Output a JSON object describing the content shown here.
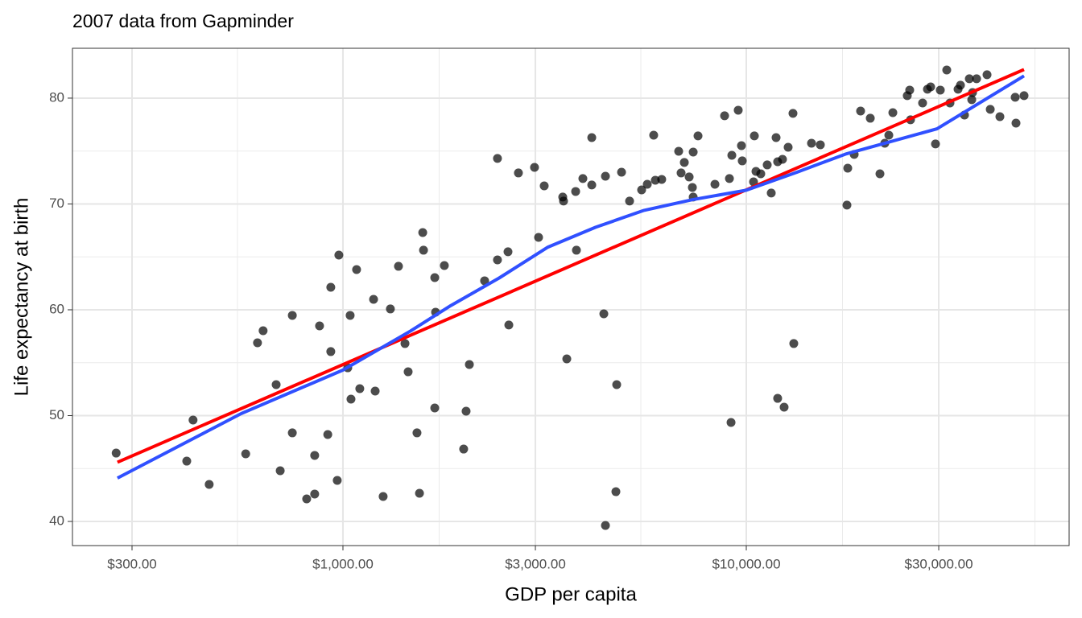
{
  "chart_data": {
    "type": "scatter",
    "title": "2007 data from Gapminder",
    "xlabel": "GDP per capita",
    "ylabel": "Life expectancy at birth",
    "log_x": true,
    "grid": true,
    "color": "#000000",
    "xlim": [
      213.5,
      63150
    ],
    "ylim": [
      37.72,
      84.71
    ],
    "xticks": [
      {
        "value": 300,
        "label": "$300.00"
      },
      {
        "value": 1000,
        "label": "$1,000.00"
      },
      {
        "value": 3000,
        "label": "$3,000.00"
      },
      {
        "value": 10000,
        "label": "$10,000.00"
      },
      {
        "value": 30000,
        "label": "$30,000.00"
      }
    ],
    "yticks": [
      40,
      50,
      60,
      70,
      80
    ],
    "x": [
      274,
      410,
      425,
      466,
      574,
      614,
      634,
      683,
      699,
      749,
      749,
      813,
      851,
      851,
      875,
      917,
      933,
      933,
      968,
      977,
      1028,
      1042,
      1047,
      1081,
      1101,
      1191,
      1202,
      1258,
      1311,
      1373,
      1425,
      1451,
      1526,
      1548,
      1577,
      1584,
      1689,
      1689,
      1697,
      1784,
      1992,
      2020,
      2058,
      2245,
      2416,
      2416,
      2566,
      2578,
      2723,
      2985,
      3155,
      3055,
      3507,
      3523,
      3589,
      3775,
      3792,
      3934,
      4139,
      4139,
      4434,
      4475,
      4475,
      4750,
      4772,
      4906,
      5136,
      5502,
      5682,
      5894,
      5949,
      6170,
      6798,
      6892,
      7020,
      7217,
      7385,
      7351,
      7385,
      7591,
      8361,
      8835,
      9082,
      9166,
      9208,
      9550,
      9728,
      9772,
      10423,
      10471,
      10568,
      10862,
      11269,
      11531,
      11854,
      11961,
      11961,
      12296,
      12410,
      12699,
      13054,
      13114,
      14511,
      15262,
      17763,
      17845,
      18514,
      19204,
      20296,
      21447,
      22048,
      22561,
      23086,
      25068,
      25418,
      25535,
      27358,
      28126,
      28647,
      29448,
      30270,
      31405,
      31989,
      33497,
      33960,
      34750,
      35725,
      36222,
      36389,
      37234,
      39523,
      40259,
      42536,
      46416,
      46630,
      48820
    ],
    "values": [
      46.46,
      45.7,
      49.58,
      43.5,
      46.39,
      56.88,
      58.02,
      52.93,
      44.79,
      48.37,
      59.47,
      42.13,
      42.59,
      46.24,
      58.48,
      48.21,
      56.05,
      62.13,
      43.88,
      65.17,
      54.52,
      59.47,
      51.56,
      63.8,
      52.55,
      60.99,
      52.32,
      42.36,
      60.08,
      64.11,
      56.81,
      54.14,
      48.37,
      42.66,
      67.3,
      65.63,
      63.04,
      50.72,
      59.77,
      64.18,
      46.84,
      50.42,
      54.83,
      62.74,
      74.3,
      64.71,
      65.48,
      58.56,
      72.93,
      73.46,
      71.71,
      66.84,
      70.65,
      70.27,
      55.36,
      71.18,
      65.63,
      72.4,
      76.27,
      71.79,
      59.62,
      72.62,
      39.62,
      42.81,
      52.93,
      73.0,
      70.27,
      71.33,
      71.86,
      76.5,
      72.24,
      72.32,
      74.98,
      72.93,
      73.92,
      72.55,
      74.9,
      71.56,
      70.65,
      76.43,
      71.86,
      78.33,
      72.4,
      49.35,
      74.6,
      78.86,
      75.51,
      74.07,
      72.09,
      76.43,
      73.08,
      72.85,
      73.69,
      71.03,
      76.27,
      51.63,
      73.99,
      74.22,
      50.8,
      75.36,
      78.56,
      56.81,
      75.74,
      75.59,
      69.89,
      73.38,
      74.68,
      78.78,
      78.1,
      72.85,
      75.74,
      76.5,
      78.63,
      80.23,
      80.76,
      77.95,
      79.54,
      80.84,
      81.06,
      75.67,
      80.76,
      82.66,
      79.54,
      80.84,
      81.22,
      78.4,
      81.83,
      79.85,
      80.53,
      81.83,
      82.21,
      78.94,
      78.25,
      80.08,
      77.64,
      80.23
    ],
    "fits": [
      {
        "color": "#ff0000",
        "x": [
          276,
          48820
        ],
        "values": [
          45.6,
          82.7
        ]
      },
      {
        "color": "#3050ff",
        "x": [
          276,
          560,
          1000,
          1471,
          1851,
          2439,
          3213,
          4233,
          5579,
          7348,
          10000,
          13360,
          17600,
          29700,
          48820
        ],
        "values": [
          44.1,
          50.2,
          54.3,
          58.0,
          60.4,
          63.0,
          65.9,
          67.8,
          69.4,
          70.4,
          71.3,
          73.0,
          74.7,
          77.1,
          82.1
        ]
      }
    ]
  }
}
